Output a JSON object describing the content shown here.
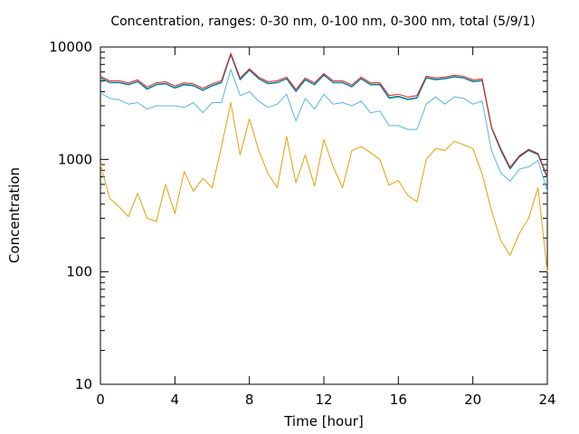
{
  "chart_data": {
    "type": "line",
    "title": "Concentration, ranges: 0-30 nm, 0-100 nm, 0-300 nm, total (5/9/1)",
    "xlabel": "Time [hour]",
    "ylabel": "Concentration",
    "xlim": [
      0,
      24
    ],
    "ylim": [
      10,
      10000
    ],
    "yscale": "log",
    "grid": false,
    "legend": "none",
    "xticks": [
      0,
      4,
      8,
      12,
      16,
      20,
      24
    ],
    "xtick_labels": [
      "0",
      "4",
      "8",
      "12",
      "16",
      "20",
      "24"
    ],
    "yticks": [
      10,
      100,
      1000,
      10000
    ],
    "ytick_labels": [
      "10",
      "100",
      "1000",
      "10000"
    ],
    "x": [
      0,
      0.5,
      1,
      1.5,
      2,
      2.5,
      3,
      3.5,
      4,
      4.5,
      5,
      5.5,
      6,
      6.5,
      7,
      7.5,
      8,
      8.5,
      9,
      9.5,
      10,
      10.5,
      11,
      11.5,
      12,
      12.5,
      13,
      13.5,
      14,
      14.5,
      15,
      15.5,
      16,
      16.5,
      17,
      17.5,
      18,
      18.5,
      19,
      19.5,
      20,
      20.5,
      21,
      21.5,
      22,
      22.5,
      23,
      23.5,
      24
    ],
    "series": [
      {
        "color": "#e69f00",
        "values": [
          900,
          450,
          380,
          310,
          500,
          300,
          280,
          600,
          330,
          780,
          520,
          680,
          560,
          1300,
          3200,
          1100,
          2300,
          1200,
          750,
          560,
          1600,
          620,
          1100,
          580,
          1500,
          860,
          560,
          1200,
          1300,
          1150,
          1000,
          590,
          650,
          480,
          420,
          1000,
          1250,
          1200,
          1450,
          1350,
          1250,
          740,
          350,
          190,
          140,
          220,
          300,
          560,
          100
        ]
      },
      {
        "color": "#56b4e9",
        "values": [
          3900,
          3500,
          3400,
          3100,
          3200,
          2800,
          3000,
          3000,
          3000,
          2900,
          3200,
          2600,
          3200,
          3200,
          6300,
          3700,
          4000,
          3300,
          2900,
          3100,
          3800,
          2200,
          3500,
          2800,
          3800,
          3100,
          3200,
          3000,
          3300,
          2600,
          2700,
          2000,
          2000,
          1850,
          1850,
          3100,
          3600,
          3100,
          3600,
          3500,
          3100,
          3300,
          1200,
          760,
          640,
          820,
          860,
          980,
          520
        ]
      },
      {
        "color": "#009e73",
        "values": [
          5300,
          4800,
          4800,
          4600,
          4900,
          4200,
          4600,
          4700,
          4300,
          4600,
          4500,
          4100,
          4500,
          4800,
          8500,
          5100,
          6200,
          5200,
          4700,
          4800,
          5200,
          4000,
          5100,
          4600,
          5600,
          4800,
          4800,
          4400,
          5200,
          4600,
          4600,
          3500,
          3600,
          3400,
          3500,
          5300,
          5100,
          5200,
          5400,
          5300,
          4900,
          5000,
          1900,
          1200,
          820,
          1050,
          1200,
          1100,
          680
        ]
      },
      {
        "color": "#0072b2",
        "values": [
          5350,
          4850,
          4850,
          4650,
          4950,
          4250,
          4650,
          4750,
          4350,
          4650,
          4550,
          4150,
          4550,
          4850,
          8600,
          5150,
          6250,
          5250,
          4750,
          4850,
          5250,
          4050,
          5150,
          4650,
          5650,
          4850,
          4850,
          4450,
          5250,
          4650,
          4650,
          3550,
          3650,
          3450,
          3550,
          5350,
          5150,
          5250,
          5450,
          5350,
          4950,
          5050,
          1920,
          1220,
          830,
          1060,
          1210,
          1110,
          690
        ]
      },
      {
        "color": "#e51e10",
        "values": [
          5500,
          5000,
          5000,
          4800,
          5100,
          4400,
          4800,
          4900,
          4500,
          4800,
          4700,
          4300,
          4700,
          5000,
          8800,
          5300,
          6400,
          5400,
          4900,
          5000,
          5400,
          4200,
          5300,
          4800,
          5800,
          5000,
          5000,
          4600,
          5400,
          4800,
          4800,
          3700,
          3800,
          3600,
          3700,
          5500,
          5300,
          5400,
          5600,
          5500,
          5100,
          5200,
          1950,
          1250,
          850,
          1080,
          1230,
          1130,
          700
        ]
      }
    ]
  }
}
